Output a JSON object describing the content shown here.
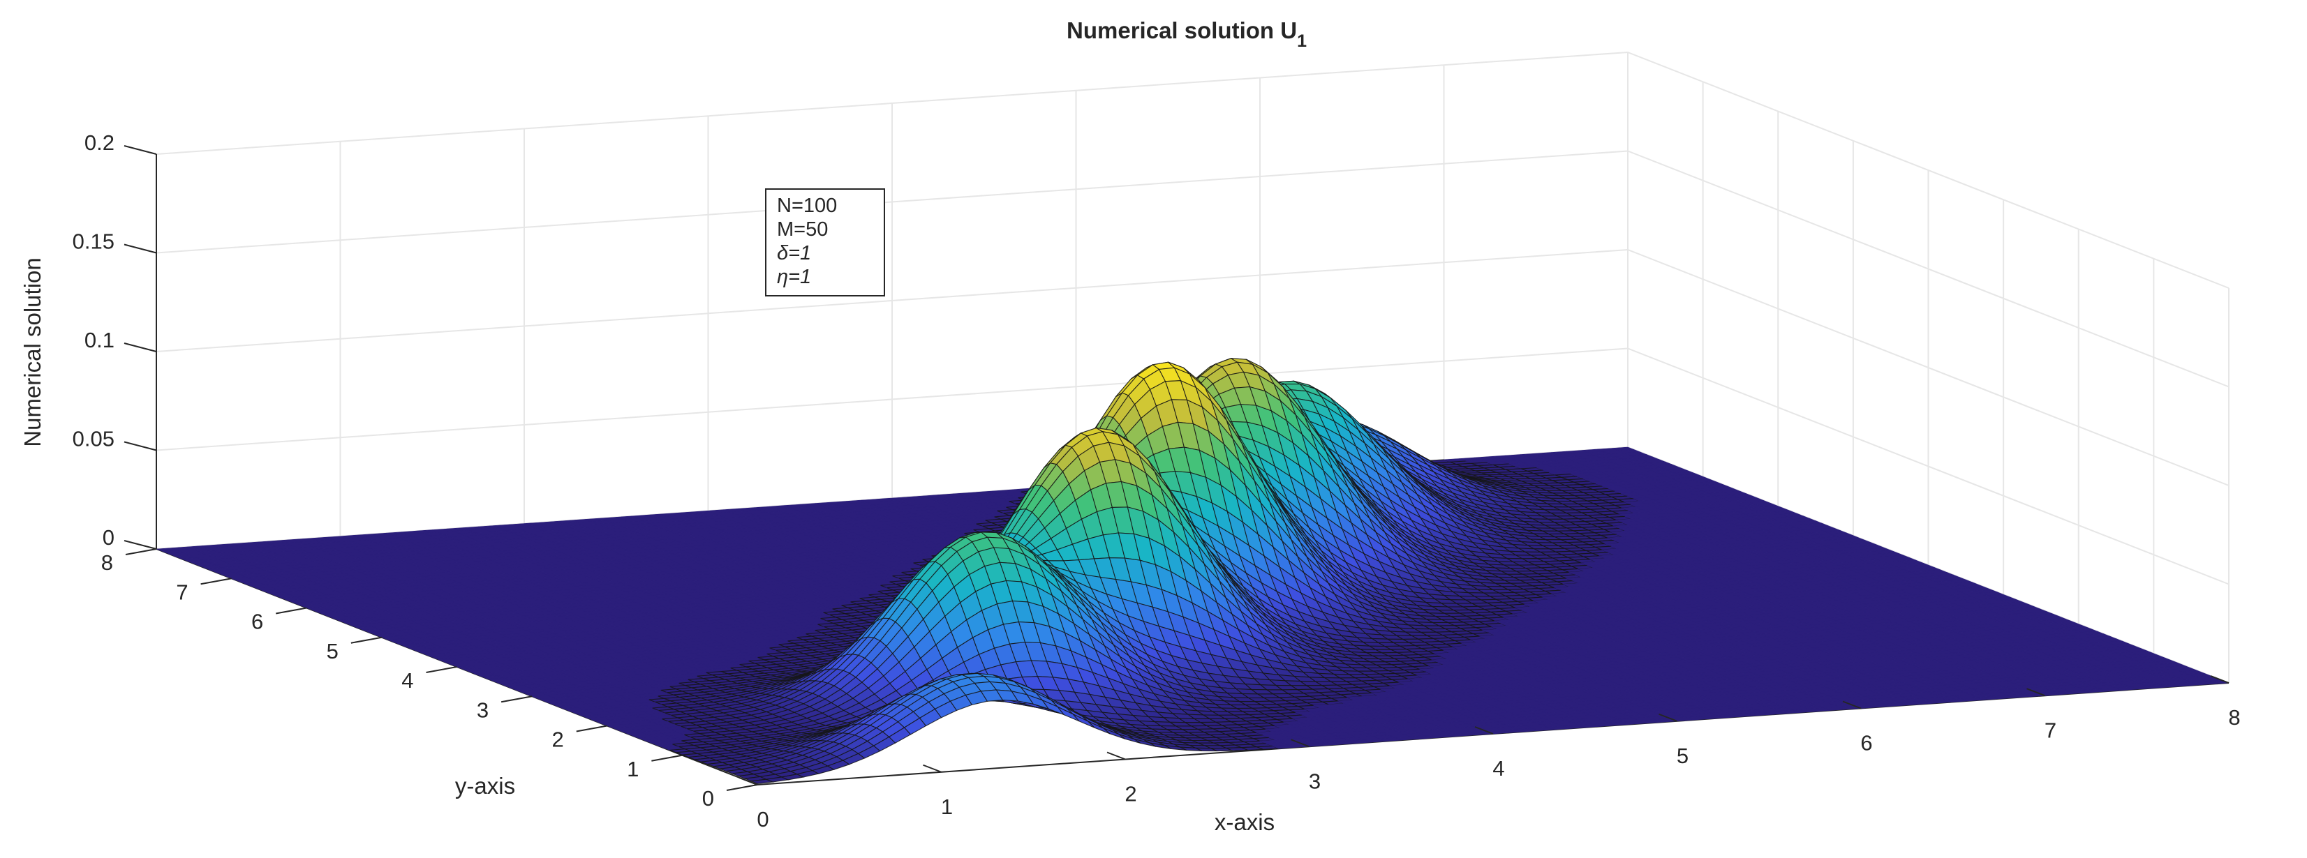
{
  "chart_data": {
    "type": "surface3d",
    "title": "Numerical solution U",
    "title_subscript": "1",
    "xlabel": "x-axis",
    "ylabel": "y-axis",
    "zlabel": "Numerical solution",
    "xlim": [
      0,
      8
    ],
    "ylim": [
      0,
      8
    ],
    "zlim": [
      0,
      0.2
    ],
    "x_ticks": [
      "0",
      "1",
      "2",
      "3",
      "4",
      "5",
      "6",
      "7",
      "8"
    ],
    "y_ticks": [
      "0",
      "1",
      "2",
      "3",
      "4",
      "5",
      "6",
      "7",
      "8"
    ],
    "z_ticks": [
      "0",
      "0.05",
      "0.1",
      "0.15",
      "0.2"
    ],
    "colormap": "parula",
    "colormap_stops": [
      "#2b1e7b",
      "#3e4fe0",
      "#2f8ae9",
      "#18b5c8",
      "#3fc27c",
      "#c2bd3b",
      "#f9e41f"
    ],
    "grid": true,
    "legend_box": [
      "N=100",
      "M=50",
      "δ=1",
      "η=1"
    ],
    "peaks": [
      {
        "x": 1.3,
        "y": 0.3,
        "z": 0.043
      },
      {
        "x": 2.0,
        "y": 1.9,
        "z": 0.085
      },
      {
        "x": 3.0,
        "y": 2.8,
        "z": 0.117
      },
      {
        "x": 3.8,
        "y": 3.9,
        "z": 0.128
      },
      {
        "x": 4.6,
        "y": 4.9,
        "z": 0.109
      },
      {
        "x": 5.3,
        "y": 5.9,
        "z": 0.078
      },
      {
        "x": 5.9,
        "y": 6.9,
        "z": 0.043
      }
    ],
    "peak_sigma": 0.45
  }
}
